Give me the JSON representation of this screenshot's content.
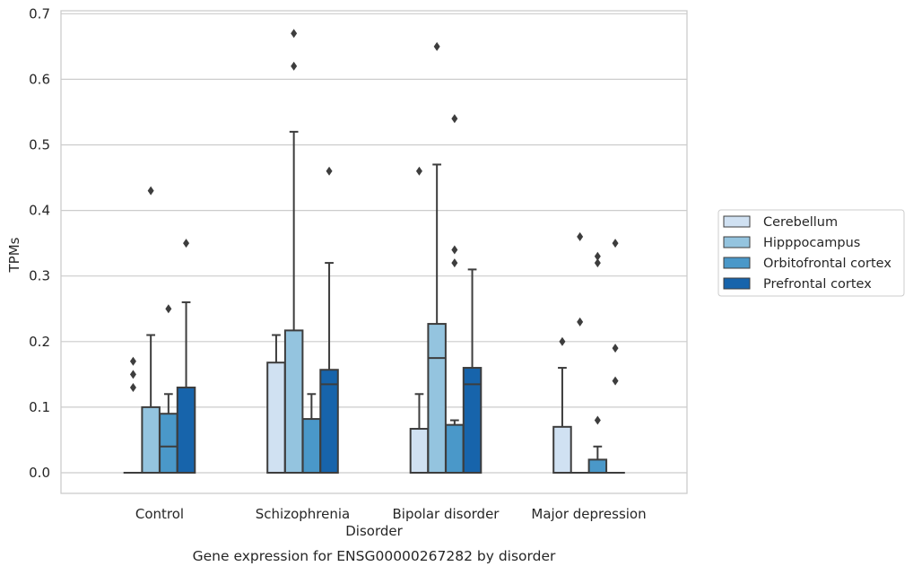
{
  "chart_data": {
    "type": "box",
    "title": "",
    "caption": "Gene expression for ENSG00000267282 by disorder",
    "xlabel": "Disorder",
    "ylabel": "TPMs",
    "ylim": [
      -0.032,
      0.705
    ],
    "yticks": [
      0.0,
      0.1,
      0.2,
      0.3,
      0.4,
      0.5,
      0.6,
      0.7
    ],
    "ytick_labels": [
      "0.0",
      "0.1",
      "0.2",
      "0.3",
      "0.4",
      "0.5",
      "0.6",
      "0.7"
    ],
    "grid": "horizontal",
    "legend_position": "right",
    "categories": [
      "Control",
      "Schizophrenia",
      "Bipolar disorder",
      "Major depression"
    ],
    "series": [
      {
        "name": "Cerebellum",
        "color": "#d0e1f2",
        "boxes": [
          {
            "q1": 0.0,
            "median": 0.0,
            "q3": 0.0,
            "whislo": 0.0,
            "whishi": 0.0,
            "fliers": [
              0.13,
              0.15,
              0.17
            ]
          },
          {
            "q1": 0.0,
            "median": 0.0,
            "q3": 0.168,
            "whislo": 0.0,
            "whishi": 0.21,
            "fliers": []
          },
          {
            "q1": 0.0,
            "median": 0.0,
            "q3": 0.067,
            "whislo": 0.0,
            "whishi": 0.12,
            "fliers": [
              0.46
            ]
          },
          {
            "q1": 0.0,
            "median": 0.0,
            "q3": 0.07,
            "whislo": 0.0,
            "whishi": 0.16,
            "fliers": [
              0.2
            ]
          }
        ]
      },
      {
        "name": "Hipppocampus",
        "color": "#94c4df",
        "boxes": [
          {
            "q1": 0.0,
            "median": 0.0,
            "q3": 0.1,
            "whislo": 0.0,
            "whishi": 0.21,
            "fliers": [
              0.43
            ]
          },
          {
            "q1": 0.0,
            "median": 0.0,
            "q3": 0.217,
            "whislo": 0.0,
            "whishi": 0.52,
            "fliers": [
              0.62,
              0.67
            ]
          },
          {
            "q1": 0.0,
            "median": 0.175,
            "q3": 0.227,
            "whislo": 0.0,
            "whishi": 0.47,
            "fliers": [
              0.65
            ]
          },
          {
            "q1": 0.0,
            "median": 0.0,
            "q3": 0.0,
            "whislo": 0.0,
            "whishi": 0.0,
            "fliers": [
              0.23,
              0.36
            ]
          }
        ]
      },
      {
        "name": "Orbitofrontal cortex",
        "color": "#4a98c9",
        "boxes": [
          {
            "q1": 0.0,
            "median": 0.04,
            "q3": 0.09,
            "whislo": 0.0,
            "whishi": 0.12,
            "fliers": [
              0.25
            ]
          },
          {
            "q1": 0.0,
            "median": 0.0,
            "q3": 0.082,
            "whislo": 0.0,
            "whishi": 0.12,
            "fliers": []
          },
          {
            "q1": 0.0,
            "median": 0.0,
            "q3": 0.073,
            "whislo": 0.0,
            "whishi": 0.08,
            "fliers": [
              0.32,
              0.34,
              0.54
            ]
          },
          {
            "q1": 0.0,
            "median": 0.0,
            "q3": 0.02,
            "whislo": 0.0,
            "whishi": 0.04,
            "fliers": [
              0.08,
              0.32,
              0.33
            ]
          }
        ]
      },
      {
        "name": "Prefrontal cortex",
        "color": "#1764ab",
        "boxes": [
          {
            "q1": 0.0,
            "median": 0.0,
            "q3": 0.13,
            "whislo": 0.0,
            "whishi": 0.26,
            "fliers": [
              0.35
            ]
          },
          {
            "q1": 0.0,
            "median": 0.135,
            "q3": 0.157,
            "whislo": 0.0,
            "whishi": 0.32,
            "fliers": [
              0.46
            ]
          },
          {
            "q1": 0.0,
            "median": 0.135,
            "q3": 0.16,
            "whislo": 0.0,
            "whishi": 0.31,
            "fliers": []
          },
          {
            "q1": 0.0,
            "median": 0.0,
            "q3": 0.0,
            "whislo": 0.0,
            "whishi": 0.0,
            "fliers": [
              0.14,
              0.19,
              0.35
            ]
          }
        ]
      }
    ]
  }
}
